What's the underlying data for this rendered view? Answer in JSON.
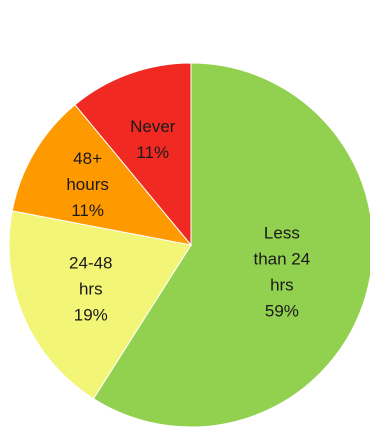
{
  "chart_data": {
    "type": "pie",
    "title": "",
    "start_angle_deg": 0,
    "direction": "clockwise",
    "slices": [
      {
        "label_lines": [
          "Less",
          "than 24",
          "hrs",
          "59%"
        ],
        "category": "Less than 24 hrs",
        "value": 59,
        "color": "#92d050"
      },
      {
        "label_lines": [
          "24-48",
          "hrs",
          "19%"
        ],
        "category": "24-48 hrs",
        "value": 19,
        "color": "#f2f575"
      },
      {
        "label_lines": [
          "48+",
          "hours",
          "11%"
        ],
        "category": "48+ hours",
        "value": 11,
        "color": "#ff9900"
      },
      {
        "label_lines": [
          "Never",
          "11%"
        ],
        "category": "Never",
        "value": 11,
        "color": "#f02a22"
      }
    ]
  }
}
